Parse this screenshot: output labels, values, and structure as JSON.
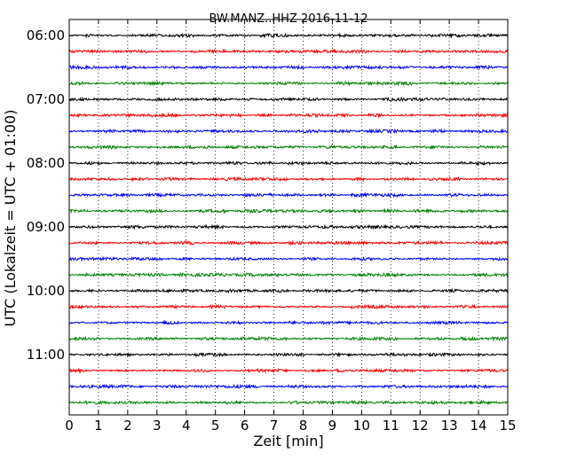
{
  "chart_data": {
    "type": "line",
    "title": "BW.MANZ..HHZ 2016-11-12",
    "xlabel": "Zeit  [min]",
    "ylabel": "UTC (Lokalzeit = UTC + 01:00)",
    "xlim": [
      0,
      15
    ],
    "x_ticks": [
      0,
      1,
      2,
      3,
      4,
      5,
      6,
      7,
      8,
      9,
      10,
      11,
      12,
      13,
      14,
      15
    ],
    "y_tick_labels": [
      "06:00",
      "07:00",
      "08:00",
      "09:00",
      "10:00",
      "11:00"
    ],
    "trace_interval_min": 15,
    "trace_count": 24,
    "trace_start": "06:00",
    "trace_colors": [
      "#000000",
      "#ff0000",
      "#0000ff",
      "#008000"
    ],
    "grid": "vertical dotted",
    "legend": "none"
  }
}
